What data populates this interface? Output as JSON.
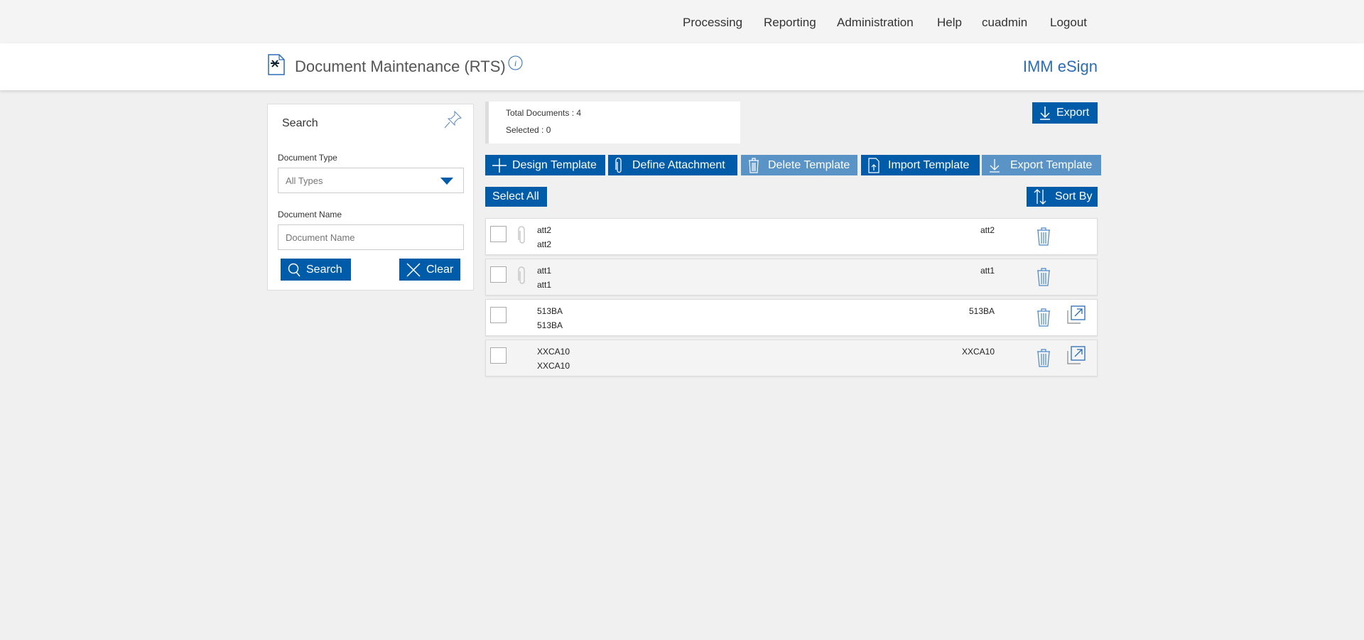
{
  "nav": {
    "items": [
      "Processing",
      "Reporting",
      "Administration",
      "Help",
      "cuadmin",
      "Logout"
    ]
  },
  "header": {
    "title": "Document Maintenance (RTS)",
    "brand": "IMM eSign"
  },
  "search": {
    "title": "Search",
    "doc_type_label": "Document Type",
    "doc_type_value": "All Types",
    "doc_name_label": "Document Name",
    "doc_name_placeholder": "Document Name",
    "search_label": "Search",
    "clear_label": "Clear"
  },
  "stats": {
    "total": "Total Documents : 4",
    "selected": "Selected : 0"
  },
  "toolbar": {
    "export": "Export",
    "design": "Design Template",
    "define": "Define Attachment",
    "delete": "Delete Template",
    "import": "Import Template",
    "export_template": "Export Template",
    "select_all": "Select All",
    "sort_by": "Sort By"
  },
  "colors": {
    "primary": "#005ca9",
    "disabled": "#5a93c5",
    "brand": "#2a6db5"
  },
  "documents": [
    {
      "name": "att2",
      "desc": "att2",
      "right": "att2",
      "attachment": true,
      "export": false
    },
    {
      "name": "att1",
      "desc": "att1",
      "right": "att1",
      "attachment": true,
      "export": false
    },
    {
      "name": "513BA",
      "desc": "513BA",
      "right": "513BA",
      "attachment": false,
      "export": true
    },
    {
      "name": "XXCA10",
      "desc": "XXCA10",
      "right": "XXCA10",
      "attachment": false,
      "export": true
    }
  ]
}
